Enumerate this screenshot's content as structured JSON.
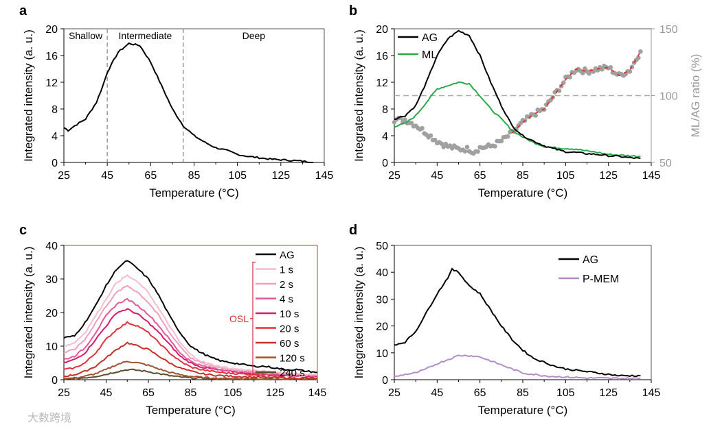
{
  "watermark": "大数跨境",
  "chart_data": [
    {
      "id": "a",
      "type": "line",
      "panel_label": "a",
      "xlabel": "Temperature (°C)",
      "ylabel": "Integrated intensity (a. u.)",
      "xlim": [
        25,
        145
      ],
      "ylim": [
        0,
        20
      ],
      "xticks": [
        "25",
        "45",
        "65",
        "85",
        "105",
        "125",
        "145"
      ],
      "yticks": [
        "0",
        "4",
        "8",
        "12",
        "16",
        "20"
      ],
      "regions": [
        {
          "label": "Shallow",
          "from": 25,
          "to": 45
        },
        {
          "label": "Intermediate",
          "from": 45,
          "to": 80
        },
        {
          "label": "Deep",
          "from": 80,
          "to": 145
        }
      ],
      "series": [
        {
          "name": "AG",
          "color": "#000000",
          "x": [
            25,
            27,
            30,
            35,
            40,
            43,
            45,
            50,
            55,
            60,
            65,
            70,
            75,
            80,
            85,
            90,
            95,
            100,
            105,
            110,
            115,
            120,
            125,
            130,
            135,
            140
          ],
          "y": [
            5.2,
            4.8,
            5.5,
            6.5,
            9,
            11.5,
            13.5,
            16.5,
            17.8,
            17.5,
            15,
            11.5,
            8,
            5.5,
            4,
            3,
            2.2,
            1.8,
            1.2,
            0.9,
            0.7,
            0.5,
            0.4,
            0.3,
            0.2,
            0
          ]
        }
      ]
    },
    {
      "id": "b",
      "type": "line",
      "panel_label": "b",
      "xlabel": "Temperature (°C)",
      "ylabel": "Integrated intensity (a. u.)",
      "y2label": "ML/AG ratio (%)",
      "xlim": [
        25,
        145
      ],
      "ylim": [
        0,
        20
      ],
      "y2lim": [
        50,
        150
      ],
      "reference_line_y2": 100,
      "xticks": [
        "25",
        "45",
        "65",
        "85",
        "105",
        "125",
        "145"
      ],
      "yticks": [
        "0",
        "4",
        "8",
        "12",
        "16",
        "20"
      ],
      "y2ticks": [
        "50",
        "100",
        "150"
      ],
      "legend": "top-left",
      "series": [
        {
          "name": "AG",
          "color": "#000000",
          "x": [
            25,
            30,
            35,
            40,
            45,
            50,
            55,
            60,
            65,
            70,
            75,
            80,
            85,
            90,
            95,
            100,
            105,
            110,
            115,
            120,
            125,
            130,
            135,
            140
          ],
          "y": [
            6.5,
            7,
            8.5,
            12,
            16,
            18.5,
            19.7,
            19,
            16,
            12,
            8.5,
            5.5,
            4,
            3.2,
            2.5,
            2,
            1.6,
            1.5,
            1.3,
            1.2,
            1,
            0.9,
            0.7,
            0.6
          ]
        },
        {
          "name": "ML",
          "color": "#2aa84a",
          "x": [
            25,
            30,
            35,
            40,
            45,
            50,
            55,
            60,
            65,
            70,
            75,
            80,
            85,
            90,
            95,
            100,
            105,
            110,
            115,
            120,
            125,
            130,
            135,
            140
          ],
          "y": [
            5.4,
            5.8,
            7,
            9,
            11,
            11.5,
            12,
            11.8,
            10,
            8,
            6.5,
            4.8,
            3.8,
            3,
            2.4,
            2.2,
            2.1,
            2,
            1.7,
            1.5,
            1.2,
            1.1,
            1,
            0.9
          ]
        },
        {
          "name": "ML/AG ratio",
          "color": "#a0a0a0",
          "axis": "y2",
          "marker": "circle",
          "fit_color": "#e03020",
          "x": [
            25,
            30,
            35,
            40,
            45,
            50,
            55,
            60,
            62,
            65,
            70,
            75,
            80,
            85,
            90,
            95,
            100,
            105,
            110,
            115,
            120,
            125,
            130,
            135,
            140
          ],
          "y": [
            82,
            82,
            78,
            72,
            66,
            62,
            60,
            60,
            58,
            61,
            62,
            66,
            72,
            80,
            86,
            90,
            101,
            112,
            120,
            118,
            120,
            121,
            115,
            119,
            133
          ]
        }
      ]
    },
    {
      "id": "c",
      "type": "line",
      "panel_label": "c",
      "xlabel": "Temperature (°C)",
      "ylabel": "Integrated intensity (a. u.)",
      "xlim": [
        25,
        145
      ],
      "ylim": [
        0,
        40
      ],
      "xticks": [
        "25",
        "45",
        "65",
        "85",
        "105",
        "125",
        "145"
      ],
      "yticks": [
        "0",
        "10",
        "20",
        "30",
        "40"
      ],
      "legend": "top-right",
      "bracket_label": "OSL",
      "x": [
        25,
        30,
        35,
        40,
        45,
        50,
        55,
        60,
        65,
        70,
        75,
        80,
        85,
        90,
        95,
        100,
        105,
        110,
        115,
        120,
        125,
        130,
        135,
        140,
        145
      ],
      "series": [
        {
          "name": "AG",
          "color": "#000000",
          "y": [
            12.5,
            13,
            17,
            22,
            28,
            33,
            35.5,
            33,
            30,
            25,
            19,
            14,
            10,
            8,
            6.5,
            5.5,
            5,
            4.5,
            4,
            4,
            3.5,
            3,
            3,
            2.5,
            2.2
          ]
        },
        {
          "name": "1 s",
          "color": "#f4bccd",
          "y": [
            10,
            11,
            14,
            19,
            24,
            29,
            31,
            29,
            26,
            21,
            16,
            11,
            7.5,
            5.5,
            4.5,
            3.8,
            3.3,
            3,
            2.7,
            2.5,
            2.2,
            2,
            1.8,
            1.6,
            1.5
          ]
        },
        {
          "name": "2 s",
          "color": "#ee9fbd",
          "y": [
            8,
            9,
            12,
            17,
            22,
            26,
            28,
            26,
            23,
            19,
            14,
            10,
            6.5,
            5,
            4,
            3.5,
            3,
            2.7,
            2.5,
            2.3,
            2,
            1.8,
            1.6,
            1.5,
            1.4
          ]
        },
        {
          "name": "4 s",
          "color": "#e0589a",
          "y": [
            6,
            7,
            9.5,
            14,
            19,
            22.5,
            24,
            22,
            19.5,
            16,
            12,
            8,
            5.5,
            4.2,
            3.5,
            3,
            2.6,
            2.3,
            2.1,
            1.9,
            1.7,
            1.5,
            1.4,
            1.3,
            1.2
          ]
        },
        {
          "name": "10 s",
          "color": "#d81b68",
          "y": [
            5,
            6,
            8,
            12,
            16,
            20,
            21,
            19.5,
            17,
            14,
            10.5,
            7,
            5,
            3.8,
            3.2,
            2.7,
            2.4,
            2.1,
            1.9,
            1.7,
            1.6,
            1.4,
            1.3,
            1.2,
            1.1
          ]
        },
        {
          "name": "20 s",
          "color": "#e0303c",
          "y": [
            3,
            3.5,
            5,
            8,
            12,
            15,
            17,
            16,
            14,
            11,
            8,
            5.5,
            3.8,
            3,
            2.5,
            2.1,
            1.9,
            1.7,
            1.5,
            1.4,
            1.3,
            1.2,
            1.1,
            1,
            1
          ]
        },
        {
          "name": "60 s",
          "color": "#c62f28",
          "y": [
            1,
            1.5,
            2.5,
            4,
            6.5,
            9,
            11,
            10,
            9,
            7,
            5,
            3.5,
            2.5,
            1.8,
            1.4,
            1.2,
            1,
            0.9,
            0.8,
            0.7,
            0.6,
            0.6,
            0.5,
            0.5,
            0.5
          ]
        },
        {
          "name": "120 s",
          "color": "#a0522d",
          "y": [
            0.3,
            0.5,
            1,
            1.8,
            3,
            4.5,
            5.5,
            5,
            4.3,
            3.2,
            2.2,
            1.5,
            1,
            0.7,
            0.5,
            0.4,
            0.3,
            0.3,
            0.3,
            0.2,
            0.2,
            0.2,
            0.2,
            0.2,
            0.2
          ]
        },
        {
          "name": "240 s",
          "color": "#5c4a2a",
          "y": [
            0.2,
            0.3,
            0.6,
            1,
            1.6,
            2.4,
            3,
            2.8,
            2.4,
            1.8,
            1.2,
            0.8,
            0.5,
            0.4,
            0.3,
            0.3,
            0.2,
            0.2,
            0.2,
            0.2,
            0.2,
            0.2,
            0.2,
            0.2,
            0.2
          ]
        }
      ]
    },
    {
      "id": "d",
      "type": "line",
      "panel_label": "d",
      "xlabel": "Temperature (°C)",
      "ylabel": "Integrated intensity (a. u.)",
      "xlim": [
        25,
        145
      ],
      "ylim": [
        0,
        50
      ],
      "xticks": [
        "25",
        "45",
        "65",
        "85",
        "105",
        "125",
        "145"
      ],
      "yticks": [
        "0",
        "10",
        "20",
        "30",
        "40",
        "50"
      ],
      "legend": "top-right",
      "series": [
        {
          "name": "AG",
          "color": "#000000",
          "x": [
            25,
            30,
            35,
            40,
            45,
            50,
            52,
            55,
            60,
            65,
            70,
            75,
            80,
            85,
            90,
            95,
            100,
            105,
            110,
            115,
            120,
            125,
            130,
            135,
            140
          ],
          "y": [
            13,
            14,
            18,
            25,
            32,
            38,
            41,
            40,
            35,
            32,
            26,
            20,
            15,
            11,
            8,
            6.5,
            5,
            4,
            3.5,
            3,
            2.5,
            2,
            1.5,
            1.5,
            1.5
          ]
        },
        {
          "name": "P-MEM",
          "color": "#b48cc8",
          "x": [
            25,
            30,
            35,
            40,
            45,
            50,
            55,
            60,
            65,
            70,
            75,
            80,
            85,
            90,
            95,
            100,
            105,
            110,
            115,
            120,
            125,
            130,
            135,
            140
          ],
          "y": [
            1,
            2,
            2.5,
            4,
            6,
            7.5,
            9,
            9,
            8.5,
            7,
            5.5,
            4,
            2.5,
            2,
            1.5,
            1.2,
            1,
            0.8,
            0.6,
            0.6,
            0.5,
            0.5,
            0.5,
            0.5
          ]
        }
      ]
    }
  ]
}
